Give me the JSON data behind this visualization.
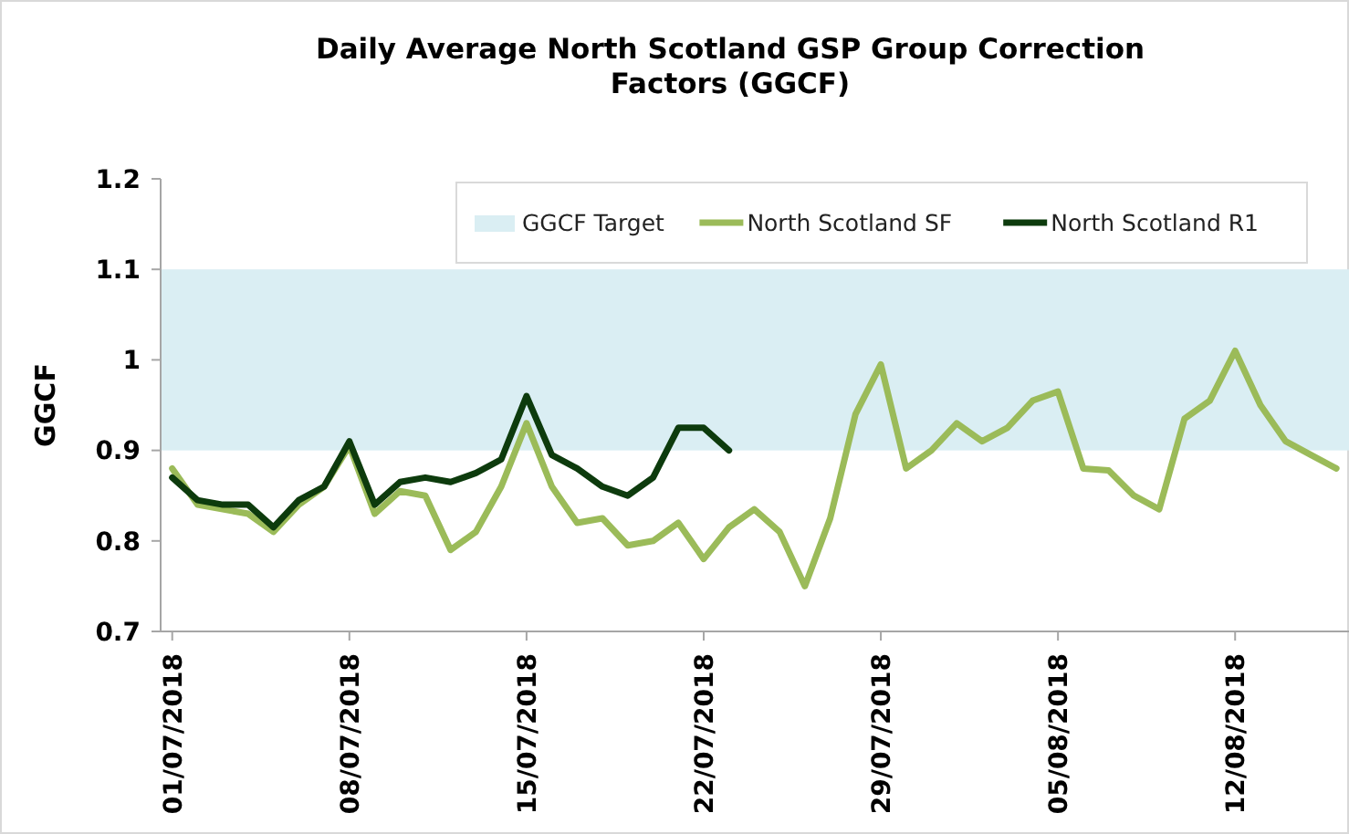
{
  "chart_data": {
    "type": "line",
    "title": "Daily Average North Scotland GSP Group Correction Factors (GGCF)",
    "ylabel": "GGCF",
    "x": [
      "2018-07-01",
      "2018-07-02",
      "2018-07-03",
      "2018-07-04",
      "2018-07-05",
      "2018-07-06",
      "2018-07-07",
      "2018-07-08",
      "2018-07-09",
      "2018-07-10",
      "2018-07-11",
      "2018-07-12",
      "2018-07-13",
      "2018-07-14",
      "2018-07-15",
      "2018-07-16",
      "2018-07-17",
      "2018-07-18",
      "2018-07-19",
      "2018-07-20",
      "2018-07-21",
      "2018-07-22",
      "2018-07-23",
      "2018-07-24",
      "2018-07-25",
      "2018-07-26",
      "2018-07-27",
      "2018-07-28",
      "2018-07-29",
      "2018-07-30",
      "2018-07-31",
      "2018-08-01",
      "2018-08-02",
      "2018-08-03",
      "2018-08-04",
      "2018-08-05",
      "2018-08-06",
      "2018-08-07",
      "2018-08-08",
      "2018-08-09",
      "2018-08-10",
      "2018-08-11",
      "2018-08-12",
      "2018-08-13",
      "2018-08-14",
      "2018-08-15",
      "2018-08-16"
    ],
    "series": [
      {
        "name": "North Scotland SF",
        "color": "#9bbb59",
        "values": [
          0.88,
          0.84,
          0.835,
          0.83,
          0.81,
          0.84,
          0.86,
          0.905,
          0.83,
          0.855,
          0.85,
          0.79,
          0.81,
          0.86,
          0.93,
          0.86,
          0.82,
          0.825,
          0.795,
          0.8,
          0.82,
          0.78,
          0.815,
          0.835,
          0.81,
          0.75,
          0.825,
          0.94,
          0.995,
          0.88,
          0.9,
          0.93,
          0.91,
          0.925,
          0.955,
          0.965,
          0.88,
          0.878,
          0.85,
          0.835,
          0.935,
          0.955,
          1.01,
          0.95,
          0.91,
          0.895,
          0.88
        ]
      },
      {
        "name": "North Scotland R1",
        "color": "#0d3b0d",
        "values": [
          0.87,
          0.845,
          0.84,
          0.84,
          0.815,
          0.845,
          0.86,
          0.91,
          0.84,
          0.865,
          0.87,
          0.865,
          0.875,
          0.89,
          0.96,
          0.895,
          0.88,
          0.86,
          0.85,
          0.87,
          0.925,
          0.925,
          0.9,
          null,
          null,
          null,
          null,
          null,
          null,
          null,
          null,
          null,
          null,
          null,
          null,
          null,
          null,
          null,
          null,
          null,
          null,
          null,
          null,
          null,
          null,
          null,
          null
        ]
      }
    ],
    "bands": [
      {
        "axis": "y",
        "from": 0.9,
        "to": 1.1,
        "label": "GGCF Target",
        "color": "#daeef3"
      }
    ],
    "xlim": [
      "2018-06-30T13:00",
      "2018-08-16T12:00"
    ],
    "xticks": [
      {
        "value": "2018-07-01",
        "label": "01/07/2018"
      },
      {
        "value": "2018-07-08",
        "label": "08/07/2018"
      },
      {
        "value": "2018-07-15",
        "label": "15/07/2018"
      },
      {
        "value": "2018-07-22",
        "label": "22/07/2018"
      },
      {
        "value": "2018-07-29",
        "label": "29/07/2018"
      },
      {
        "value": "2018-08-05",
        "label": "05/08/2018"
      },
      {
        "value": "2018-08-12",
        "label": "12/08/2018"
      }
    ],
    "ylim": [
      0.7,
      1.2
    ],
    "yticks": [
      0.7,
      0.8,
      0.9,
      1,
      1.1,
      1.2
    ],
    "legend": "top right",
    "grid": false,
    "marker": "none",
    "line_style": "solid"
  }
}
